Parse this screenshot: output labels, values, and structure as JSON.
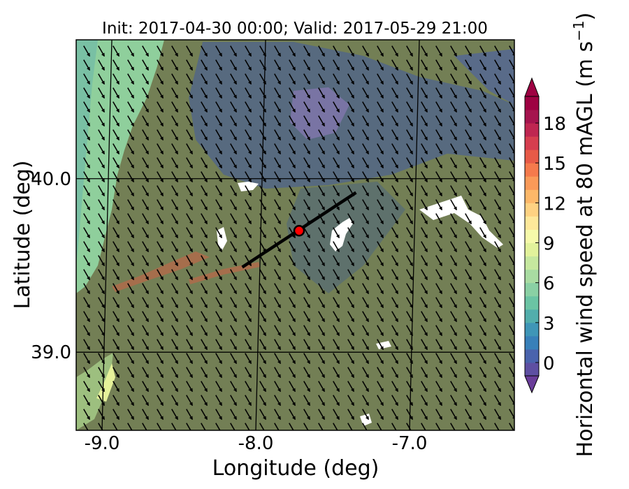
{
  "chart_data": {
    "type": "heatmap",
    "title": "Init: 2017-04-30 00:00; Valid: 2017-05-29 21:00",
    "xlabel": "Longitude (deg)",
    "ylabel": "Latitude (deg)",
    "xlim": [
      -9.2,
      -6.35
    ],
    "ylim": [
      38.55,
      40.8
    ],
    "x_ticks": [
      {
        "value": -9.0,
        "label": "-9.0"
      },
      {
        "value": -8.0,
        "label": "-8.0"
      },
      {
        "value": -7.0,
        "label": "-7.0"
      }
    ],
    "y_ticks": [
      {
        "value": 40.0,
        "label": "40.0"
      },
      {
        "value": 39.0,
        "label": "39.0"
      }
    ],
    "grid": true,
    "site": {
      "lon": -7.75,
      "lat": 39.7
    },
    "transect": {
      "start": [
        -8.12,
        39.49
      ],
      "end": [
        -7.38,
        39.92
      ]
    },
    "wind_direction_deg": 330,
    "colorbar": {
      "label": "Horizontal wind speed at 80 mAGL (m s",
      "label_unit_exponent": "−1",
      "label_close": ")",
      "min": -1,
      "max": 20,
      "step": 1,
      "extend": "both",
      "ticks": [
        {
          "value": 0,
          "label": "0"
        },
        {
          "value": 3,
          "label": "3"
        },
        {
          "value": 6,
          "label": "6"
        },
        {
          "value": 9,
          "label": "9"
        },
        {
          "value": 12,
          "label": "12"
        },
        {
          "value": 15,
          "label": "15"
        },
        {
          "value": 18,
          "label": "18"
        }
      ],
      "colors": [
        "#5e4fa2",
        "#4a63ad",
        "#3880b9",
        "#3f96b7",
        "#52aeac",
        "#6bc4a4",
        "#8ad0a4",
        "#a9dca2",
        "#c6e89f",
        "#e2f29b",
        "#f6faaa",
        "#fee89a",
        "#fed282",
        "#fdb869",
        "#fa9a58",
        "#f57a4c",
        "#e75a47",
        "#d63e4f",
        "#bf2651",
        "#a5144e",
        "#9e0142"
      ]
    }
  }
}
